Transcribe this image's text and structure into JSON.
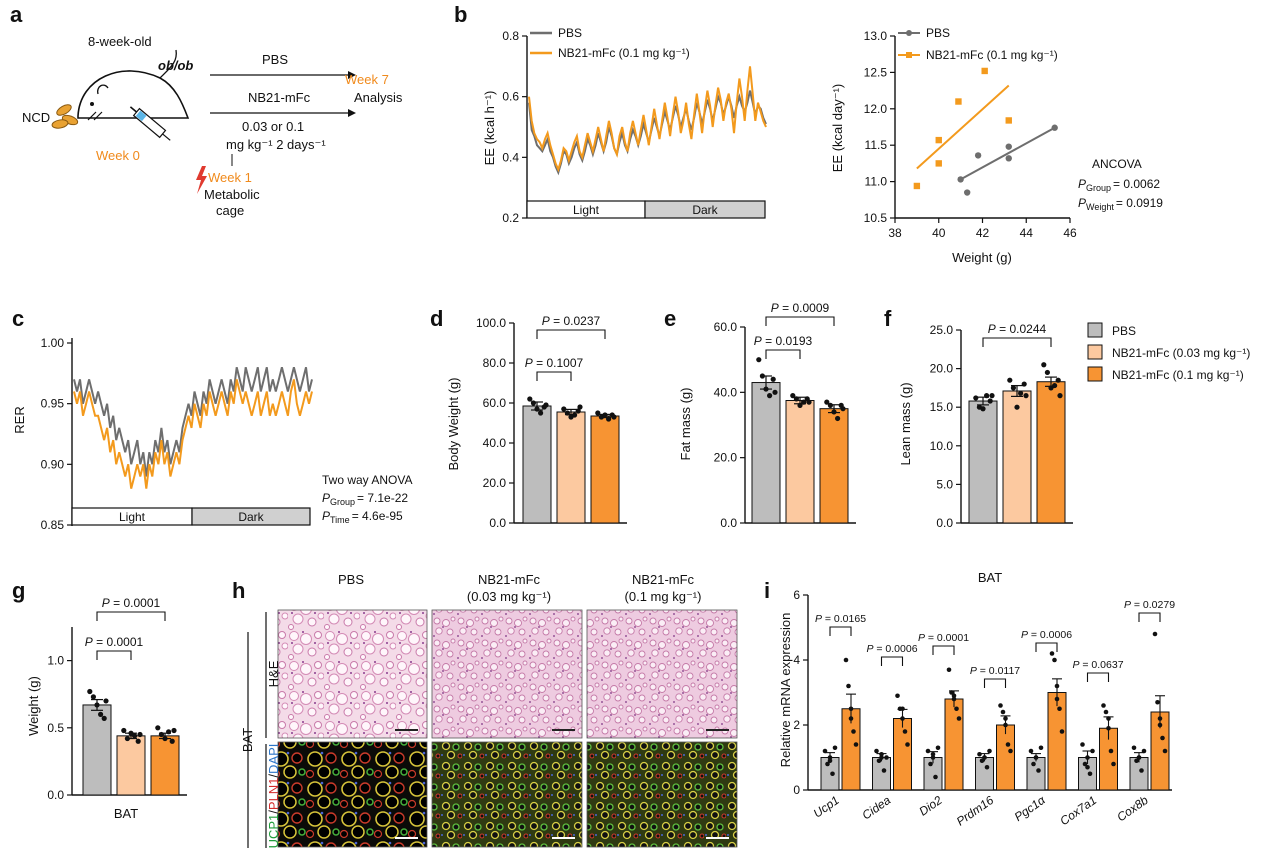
{
  "figure": {
    "panel_labels": [
      "a",
      "b",
      "c",
      "d",
      "e",
      "f",
      "g",
      "h",
      "i"
    ],
    "colors": {
      "pbs": "#bdbdbd",
      "low": "#fcc9a0",
      "high": "#f79433",
      "pbs_line": "#6e6e6e",
      "high_line": "#f39a1d",
      "accent": "#f08a1c",
      "bolt": "#e03a2f"
    }
  },
  "panel_a": {
    "age": "8-week-old",
    "strain": "ob/ob",
    "diet": "NCD",
    "week0": "Week 0",
    "group1": "PBS",
    "group2": "NB21-mFc",
    "dose_line1": "0.03 or 0.1",
    "dose_line2": "mg kg⁻¹ 2 days⁻¹",
    "week7": "Week 7",
    "analysis": "Analysis",
    "week1": "Week 1",
    "metabolic1": "Metabolic",
    "metabolic2": "cage",
    "icons": [
      "food-pellets-icon",
      "mouse-icon",
      "syringe-icon",
      "lightning-bolt-icon"
    ]
  },
  "chart_data": [
    {
      "id": "b-left",
      "type": "line",
      "ylabel": "EE (kcal h⁻¹)",
      "ylim": [
        0.2,
        0.8
      ],
      "yticks": [
        "0.2",
        "0.4",
        "0.6",
        "0.8"
      ],
      "phase_bar": [
        "Light",
        "Dark"
      ],
      "legend": [
        "PBS",
        "NB21-mFc (0.1 mg kg⁻¹)"
      ],
      "series": [
        {
          "name": "PBS",
          "values": [
            0.58,
            0.49,
            0.47,
            0.44,
            0.43,
            0.42,
            0.44,
            0.46,
            0.42,
            0.4,
            0.37,
            0.35,
            0.38,
            0.42,
            0.41,
            0.38,
            0.4,
            0.43,
            0.45,
            0.41,
            0.39,
            0.42,
            0.46,
            0.44,
            0.41,
            0.44,
            0.48,
            0.45,
            0.42,
            0.45,
            0.5,
            0.47,
            0.43,
            0.41,
            0.45,
            0.48,
            0.44,
            0.42,
            0.46,
            0.49,
            0.47,
            0.44,
            0.47,
            0.51,
            0.48,
            0.45,
            0.49,
            0.53,
            0.5,
            0.47,
            0.51,
            0.55,
            0.52,
            0.49,
            0.53,
            0.57,
            0.54,
            0.5,
            0.53,
            0.56,
            0.52,
            0.49,
            0.53,
            0.58,
            0.55,
            0.51,
            0.55,
            0.59,
            0.56,
            0.52,
            0.56,
            0.6,
            0.58,
            0.54,
            0.57,
            0.6,
            0.57,
            0.53,
            0.57,
            0.6,
            0.57,
            0.55,
            0.58,
            0.62,
            0.58,
            0.54,
            0.57,
            0.56,
            0.53,
            0.51
          ]
        },
        {
          "name": "NB21-mFc (0.1 mg kg⁻¹)",
          "values": [
            0.6,
            0.52,
            0.48,
            0.46,
            0.45,
            0.43,
            0.46,
            0.48,
            0.44,
            0.41,
            0.38,
            0.36,
            0.39,
            0.43,
            0.42,
            0.39,
            0.42,
            0.45,
            0.47,
            0.42,
            0.4,
            0.44,
            0.48,
            0.45,
            0.42,
            0.46,
            0.5,
            0.46,
            0.42,
            0.47,
            0.52,
            0.48,
            0.43,
            0.41,
            0.47,
            0.5,
            0.45,
            0.42,
            0.48,
            0.52,
            0.48,
            0.44,
            0.49,
            0.54,
            0.49,
            0.44,
            0.5,
            0.56,
            0.51,
            0.46,
            0.52,
            0.58,
            0.53,
            0.47,
            0.54,
            0.6,
            0.55,
            0.48,
            0.52,
            0.58,
            0.51,
            0.46,
            0.54,
            0.61,
            0.55,
            0.48,
            0.56,
            0.62,
            0.57,
            0.5,
            0.57,
            0.63,
            0.59,
            0.52,
            0.58,
            0.61,
            0.56,
            0.48,
            0.58,
            0.66,
            0.6,
            0.52,
            0.62,
            0.7,
            0.61,
            0.52,
            0.58,
            0.55,
            0.52,
            0.5
          ]
        }
      ]
    },
    {
      "id": "b-right",
      "type": "scatter",
      "xlabel": "Weight (g)",
      "ylabel": "EE (kcal day⁻¹)",
      "xlim": [
        38,
        46
      ],
      "ylim": [
        10.5,
        13.0
      ],
      "xticks": [
        "38",
        "40",
        "42",
        "44",
        "46"
      ],
      "yticks": [
        "10.5",
        "11.0",
        "11.5",
        "12.0",
        "12.5",
        "13.0"
      ],
      "legend": [
        "PBS",
        "NB21-mFc (0.1 mg kg⁻¹)"
      ],
      "series": [
        {
          "name": "PBS",
          "points": [
            [
              41.0,
              11.03
            ],
            [
              41.3,
              10.85
            ],
            [
              41.8,
              11.36
            ],
            [
              43.2,
              11.48
            ],
            [
              43.2,
              11.32
            ],
            [
              45.3,
              11.74
            ]
          ],
          "fit": [
            [
              41.0,
              11.03
            ],
            [
              45.3,
              11.74
            ]
          ]
        },
        {
          "name": "NB21-mFc (0.1 mg kg⁻¹)",
          "points": [
            [
              39.0,
              10.94
            ],
            [
              40.0,
              11.57
            ],
            [
              40.0,
              11.25
            ],
            [
              40.9,
              12.1
            ],
            [
              42.1,
              12.52
            ],
            [
              43.2,
              11.84
            ]
          ],
          "fit": [
            [
              39.0,
              11.18
            ],
            [
              43.2,
              12.32
            ]
          ]
        }
      ],
      "stats": {
        "test": "ANCOVA",
        "p_group": "= 0.0062",
        "p_weight": "= 0.0919"
      }
    },
    {
      "id": "c",
      "type": "line",
      "ylabel": "RER",
      "ylim": [
        0.85,
        1.0
      ],
      "yticks": [
        "0.85",
        "0.90",
        "0.95",
        "1.00"
      ],
      "phase_bar": [
        "Light",
        "Dark"
      ],
      "series": [
        {
          "name": "PBS",
          "values": [
            0.97,
            0.96,
            0.97,
            0.95,
            0.96,
            0.97,
            0.96,
            0.95,
            0.96,
            0.95,
            0.94,
            0.95,
            0.93,
            0.94,
            0.92,
            0.93,
            0.92,
            0.91,
            0.92,
            0.9,
            0.91,
            0.92,
            0.9,
            0.91,
            0.89,
            0.91,
            0.9,
            0.92,
            0.91,
            0.93,
            0.91,
            0.92,
            0.9,
            0.91,
            0.92,
            0.91,
            0.93,
            0.94,
            0.95,
            0.94,
            0.96,
            0.95,
            0.94,
            0.96,
            0.95,
            0.97,
            0.96,
            0.95,
            0.96,
            0.97,
            0.96,
            0.95,
            0.97,
            0.96,
            0.98,
            0.97,
            0.96,
            0.98,
            0.97,
            0.96,
            0.97,
            0.98,
            0.96,
            0.97,
            0.98,
            0.96,
            0.97,
            0.96,
            0.97,
            0.98,
            0.97,
            0.96,
            0.97,
            0.98,
            0.97,
            0.96,
            0.97,
            0.98,
            0.96,
            0.97
          ]
        },
        {
          "name": "NB21-mFc (0.1 mg kg⁻¹)",
          "values": [
            0.96,
            0.95,
            0.96,
            0.94,
            0.95,
            0.96,
            0.95,
            0.94,
            0.94,
            0.93,
            0.92,
            0.93,
            0.91,
            0.92,
            0.9,
            0.91,
            0.9,
            0.89,
            0.9,
            0.88,
            0.89,
            0.9,
            0.89,
            0.9,
            0.88,
            0.9,
            0.89,
            0.91,
            0.9,
            0.92,
            0.9,
            0.91,
            0.89,
            0.9,
            0.91,
            0.9,
            0.92,
            0.93,
            0.94,
            0.93,
            0.95,
            0.94,
            0.93,
            0.95,
            0.94,
            0.96,
            0.95,
            0.94,
            0.95,
            0.96,
            0.95,
            0.94,
            0.96,
            0.95,
            0.97,
            0.96,
            0.95,
            0.96,
            0.95,
            0.94,
            0.95,
            0.96,
            0.94,
            0.95,
            0.96,
            0.94,
            0.95,
            0.94,
            0.95,
            0.96,
            0.95,
            0.94,
            0.96,
            0.97,
            0.95,
            0.94,
            0.95,
            0.96,
            0.95,
            0.96
          ]
        }
      ],
      "stats": {
        "test": "Two way ANOVA",
        "p_group": "= 7.1e-22",
        "p_time": "= 4.6e-95"
      }
    },
    {
      "id": "d",
      "type": "bar",
      "ylabel": "Body Weight (g)",
      "ylim": [
        0,
        100
      ],
      "yticks": [
        "0.0",
        "20.0",
        "40.0",
        "60.0",
        "80.0",
        "100.0"
      ],
      "categories": [
        "PBS",
        "NB21-mFc (0.03 mg kg⁻¹)",
        "NB21-mFc (0.1 mg kg⁻¹)"
      ],
      "values": [
        58.5,
        55.5,
        53.5
      ],
      "errors": [
        2.0,
        1.3,
        0.8
      ],
      "points": [
        [
          62,
          60,
          57,
          55,
          58,
          59
        ],
        [
          57,
          55,
          53,
          54,
          56,
          58
        ],
        [
          55,
          53,
          54,
          52,
          54,
          53
        ]
      ],
      "brackets": [
        {
          "from": 0,
          "to": 1,
          "level": 0,
          "label": "P = 0.1007"
        },
        {
          "from": 0,
          "to": 2,
          "level": 1,
          "label": "P = 0.0237"
        }
      ]
    },
    {
      "id": "e",
      "type": "bar",
      "ylabel": "Fat mass (g)",
      "ylim": [
        0,
        60
      ],
      "yticks": [
        "0.0",
        "20.0",
        "40.0",
        "60.0"
      ],
      "categories": [
        "PBS",
        "NB21-mFc (0.03 mg kg⁻¹)",
        "NB21-mFc (0.1 mg kg⁻¹)"
      ],
      "values": [
        43.0,
        37.5,
        35.0
      ],
      "errors": [
        2.0,
        1.0,
        1.2
      ],
      "points": [
        [
          50,
          45,
          41,
          39,
          44,
          40
        ],
        [
          39,
          38,
          36,
          37,
          38,
          37
        ],
        [
          37,
          36,
          34,
          32,
          36,
          35
        ]
      ],
      "brackets": [
        {
          "from": 0,
          "to": 1,
          "level": 0,
          "label": "P = 0.0193"
        },
        {
          "from": 0,
          "to": 2,
          "level": 1,
          "label": "P = 0.0009"
        }
      ]
    },
    {
      "id": "f",
      "type": "bar",
      "ylabel": "Lean mass (g)",
      "ylim": [
        0,
        25
      ],
      "yticks": [
        "0.0",
        "5.0",
        "10.0",
        "15.0",
        "20.0",
        "25.0"
      ],
      "categories": [
        "PBS",
        "NB21-mFc (0.03 mg kg⁻¹)",
        "NB21-mFc (0.1 mg kg⁻¹)"
      ],
      "values": [
        15.8,
        17.1,
        18.3
      ],
      "errors": [
        0.5,
        0.7,
        0.6
      ],
      "points": [
        [
          16.2,
          15.0,
          14.8,
          16.5,
          15.8,
          16.5
        ],
        [
          18.5,
          17.5,
          15.0,
          16.8,
          18.0,
          16.5
        ],
        [
          20.5,
          19.5,
          17.5,
          17.8,
          18.5,
          16.5
        ]
      ],
      "brackets": [
        {
          "from": 0,
          "to": 2,
          "level": 1,
          "label": "P = 0.0244"
        }
      ]
    },
    {
      "id": "g",
      "type": "bar",
      "ylabel": "Weight (g)",
      "xlabel": "BAT",
      "ylim": [
        0,
        1.25
      ],
      "yticks": [
        "0.0",
        "0.5",
        "1.0"
      ],
      "categories": [
        "PBS",
        "NB21-mFc (0.03 mg kg⁻¹)",
        "NB21-mFc (0.1 mg kg⁻¹)"
      ],
      "values": [
        0.67,
        0.44,
        0.44
      ],
      "errors": [
        0.04,
        0.02,
        0.02
      ],
      "points": [
        [
          0.77,
          0.73,
          0.67,
          0.6,
          0.57,
          0.7
        ],
        [
          0.48,
          0.42,
          0.46,
          0.44,
          0.4,
          0.45
        ],
        [
          0.5,
          0.45,
          0.42,
          0.47,
          0.4,
          0.48
        ]
      ],
      "brackets": [
        {
          "from": 0,
          "to": 1,
          "level": 0,
          "label": "P = 0.0001"
        },
        {
          "from": 0,
          "to": 2,
          "level": 1,
          "label": "P = 0.0001"
        }
      ]
    },
    {
      "id": "i",
      "type": "bar",
      "title": "BAT",
      "ylabel": "Relative mRNA expression",
      "ylim": [
        0,
        6
      ],
      "yticks": [
        "0",
        "2",
        "4",
        "6"
      ],
      "categories": [
        "Ucp1",
        "Cidea",
        "Dio2",
        "Prdm16",
        "Pgc1α",
        "Cox7a1",
        "Cox8b"
      ],
      "series": [
        {
          "name": "PBS",
          "values": [
            1.0,
            1.0,
            1.0,
            1.0,
            1.0,
            1.0,
            1.0
          ],
          "errors": [
            0.15,
            0.12,
            0.18,
            0.12,
            0.12,
            0.2,
            0.15
          ]
        },
        {
          "name": "NB21-mFc (0.1 mg kg⁻¹)",
          "values": [
            2.5,
            2.2,
            2.8,
            2.0,
            3.0,
            1.9,
            2.4
          ],
          "errors": [
            0.45,
            0.28,
            0.25,
            0.28,
            0.42,
            0.35,
            0.5
          ]
        }
      ],
      "points_pbs": [
        [
          1.2,
          0.8,
          1.0,
          0.5,
          1.3,
          0.9
        ],
        [
          1.2,
          0.9,
          1.0,
          0.6,
          1.0,
          1.1
        ],
        [
          1.2,
          0.8,
          1.0,
          0.4,
          1.3,
          1.1
        ],
        [
          1.1,
          0.9,
          1.0,
          0.7,
          1.2,
          1.0
        ],
        [
          1.2,
          0.8,
          1.0,
          0.6,
          1.3,
          1.0
        ],
        [
          1.4,
          0.8,
          1.0,
          0.5,
          1.2,
          0.7
        ],
        [
          1.3,
          0.9,
          1.0,
          0.6,
          1.2,
          1.0
        ]
      ],
      "points_trt": [
        [
          4.0,
          3.2,
          2.5,
          1.8,
          1.4,
          2.2
        ],
        [
          2.9,
          2.5,
          2.2,
          1.8,
          1.4,
          2.5
        ],
        [
          3.7,
          3.0,
          2.8,
          2.5,
          2.2,
          2.9
        ],
        [
          2.6,
          2.4,
          2.0,
          1.4,
          1.2,
          2.2
        ],
        [
          4.2,
          4.0,
          3.2,
          2.5,
          1.8,
          2.8
        ],
        [
          2.6,
          2.4,
          1.9,
          1.2,
          0.8,
          2.2
        ],
        [
          4.8,
          2.7,
          2.2,
          1.6,
          1.2,
          2.0
        ]
      ],
      "pvalues": [
        "P = 0.0165",
        "P = 0.0006",
        "P = 0.0001",
        "P = 0.0117",
        "P = 0.0006",
        "P = 0.0637",
        "P = 0.0279"
      ]
    }
  ],
  "legend_def": [
    "PBS",
    "NB21-mFc (0.03 mg kg⁻¹)",
    "NB21-mFc (0.1 mg kg⁻¹)"
  ],
  "panel_h": {
    "columns": [
      "PBS",
      "NB21-mFc",
      "NB21-mFc"
    ],
    "doses": [
      "",
      "(0.03 mg kg⁻¹)",
      "(0.1 mg kg⁻¹)"
    ],
    "tissue": "BAT",
    "row1": "H&E",
    "row2": [
      "UCP1",
      "/",
      "PLN1",
      "/",
      "DAPI"
    ],
    "row2_colors": [
      "#1f9d3a",
      "#111111",
      "#d42b2b",
      "#111111",
      "#2b76c9"
    ]
  }
}
